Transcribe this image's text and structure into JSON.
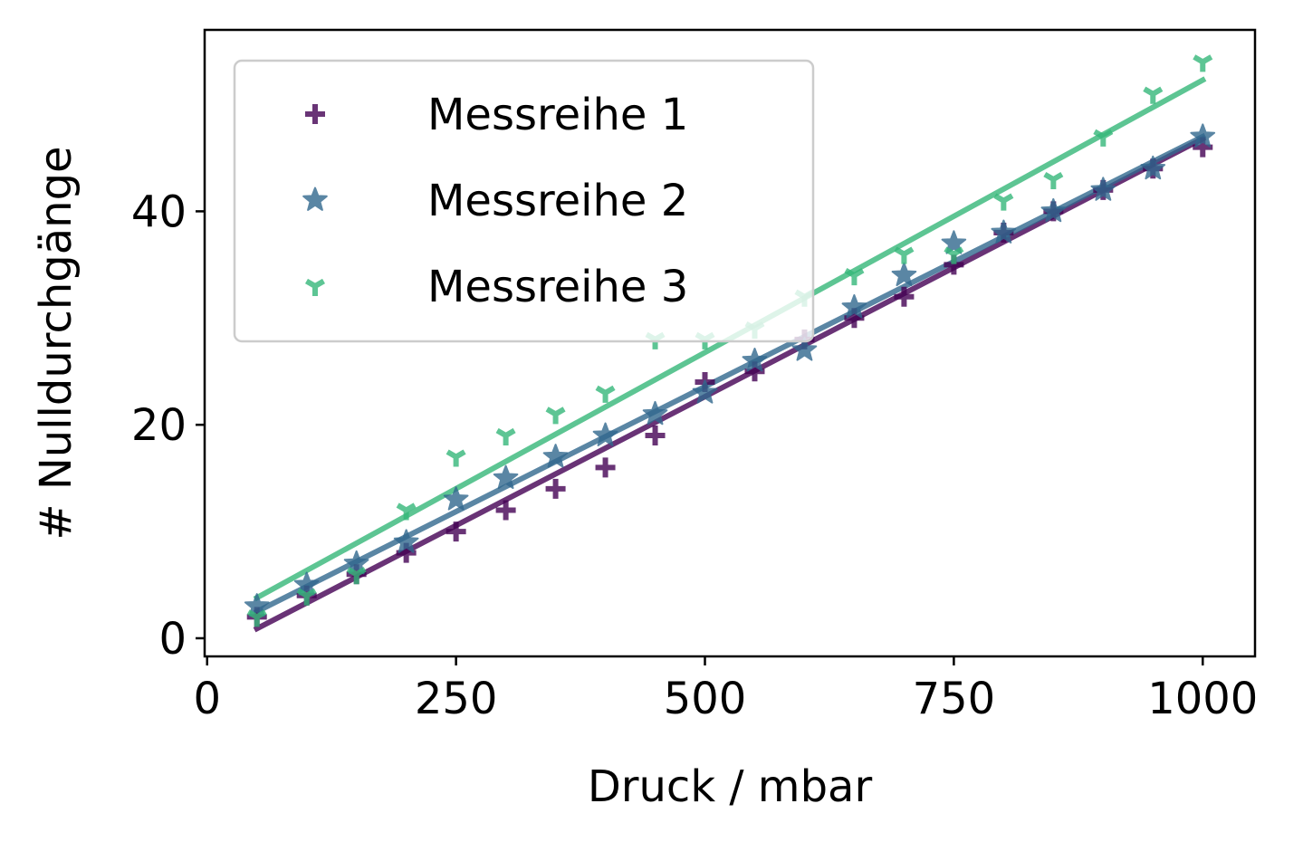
{
  "chart_data": {
    "type": "scatter",
    "xlabel": "Druck / mbar",
    "ylabel": "# Nulldurchgänge",
    "xlim": [
      -2.5,
      1052.5
    ],
    "ylim": [
      -1.7,
      57
    ],
    "xticks": [
      0,
      250,
      500,
      750,
      1000
    ],
    "xtick_labels": [
      "0",
      "250",
      "500",
      "750",
      "1000"
    ],
    "yticks": [
      0,
      20,
      40
    ],
    "ytick_labels": [
      "0",
      "20",
      "40"
    ],
    "legend_position": "upper-left",
    "grid": false,
    "x": [
      50,
      100,
      150,
      200,
      250,
      300,
      350,
      400,
      450,
      500,
      550,
      600,
      650,
      700,
      750,
      800,
      850,
      900,
      950,
      1000
    ],
    "series": [
      {
        "name": "Messreihe 1",
        "marker": "plus",
        "color": "#440154",
        "values": [
          2,
          4,
          6,
          8,
          10,
          12,
          14,
          16,
          19,
          24,
          25,
          28,
          30,
          32,
          35,
          38,
          40,
          42,
          44,
          46
        ],
        "fit": [
          0.9,
          46.8
        ]
      },
      {
        "name": "Messreihe 2",
        "marker": "star",
        "color": "#31688e",
        "values": [
          3,
          5,
          7,
          9,
          13,
          15,
          17,
          19,
          21,
          23,
          26,
          27,
          31,
          34,
          37,
          38,
          40,
          42,
          44,
          47
        ],
        "fit": [
          2.5,
          47.0
        ]
      },
      {
        "name": "Messreihe 3",
        "marker": "tri_down",
        "color": "#35b779",
        "values": [
          2,
          4,
          6,
          12,
          17,
          19,
          21,
          23,
          28,
          28,
          29,
          32,
          34,
          36,
          36,
          41,
          43,
          47,
          51,
          54
        ],
        "fit": [
          3.8,
          52.3
        ]
      }
    ]
  }
}
